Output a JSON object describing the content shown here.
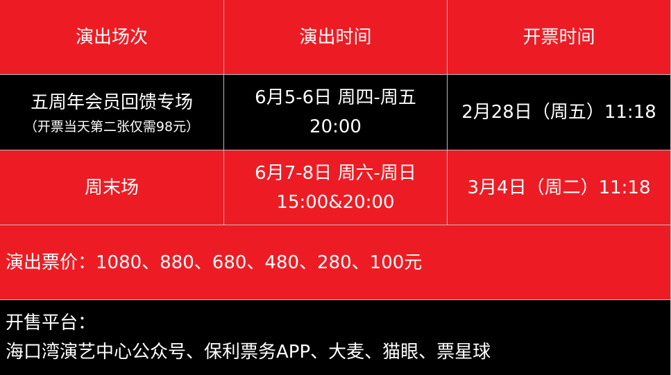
{
  "colors": {
    "red": "#ed1c24",
    "black": "#000000",
    "grid": "#bdbdbd",
    "text": "#ffffff"
  },
  "header": [
    "演出场次",
    "演出时间",
    "开票时间"
  ],
  "rows": [
    {
      "session": "五周年会员回馈专场",
      "note": "（开票当天第二张仅需98元）",
      "time_line1": "6月5-6日 周四-周五",
      "time_line2": "20:00",
      "sale": "2月28日（周五）11:18"
    },
    {
      "session": "周末场",
      "time_line1": "6月7-8日 周六-周日",
      "time_line2": "15:00&20:00",
      "sale": "3月4日（周二）11:18"
    }
  ],
  "prices": "演出票价：1080、880、680、480、280、100元",
  "platform_label": "开售平台：",
  "platforms": "海口湾演艺中心公众号、保利票务APP、大麦、猫眼、票星球"
}
